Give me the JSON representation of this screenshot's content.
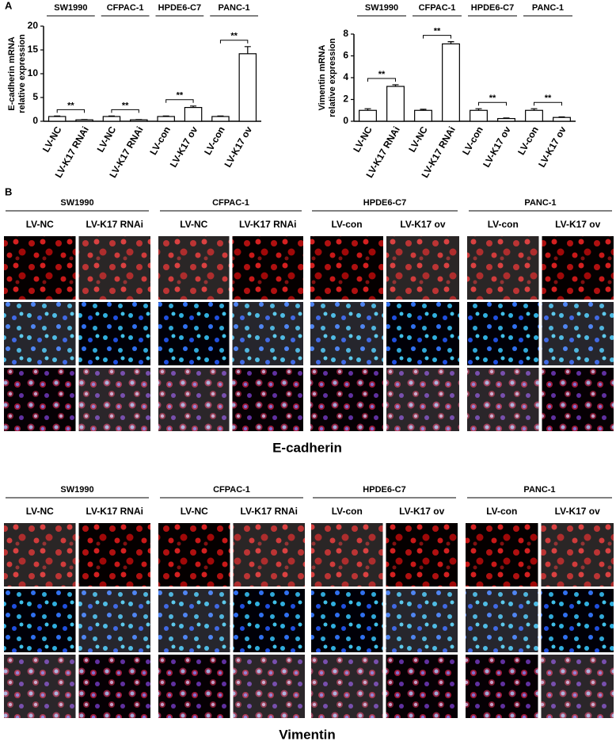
{
  "panel_labels": [
    "A",
    "B"
  ],
  "chart_data": [
    {
      "type": "bar",
      "ylabel": [
        "E-cadherin mRNA",
        "relative expression"
      ],
      "groups": [
        "SW1990",
        "CFPAC-1",
        "HPDE6-C7",
        "PANC-1"
      ],
      "categories": [
        "LV-NC",
        "LV-K17 RNAi",
        "LV-NC",
        "LV-K17 RNAi",
        "LV-con",
        "LV-K17 ov",
        "LV-con",
        "LV-K17 ov"
      ],
      "values": [
        1,
        0.3,
        1,
        0.3,
        1,
        2.9,
        1,
        14.2
      ],
      "errors": [
        0.1,
        0.05,
        0.1,
        0.05,
        0.1,
        0.3,
        0.1,
        1.5
      ],
      "annotations": [
        "**",
        "**",
        "**",
        "**"
      ],
      "color": "#ffffff",
      "ylim": [
        0,
        20
      ],
      "yticks": [
        0,
        5,
        10,
        15,
        20
      ]
    },
    {
      "type": "bar",
      "ylabel": [
        "Vimentin mRNA",
        "relative expression"
      ],
      "groups": [
        "SW1990",
        "CFPAC-1",
        "HPDE6-C7",
        "PANC-1"
      ],
      "categories": [
        "LV-NC",
        "LV-K17 RNAi",
        "LV-NC",
        "LV-K17 RNAi",
        "LV-con",
        "LV-K17 ov",
        "LV-con",
        "LV-K17 ov"
      ],
      "values": [
        1,
        3.2,
        1,
        7.1,
        1,
        0.25,
        1,
        0.35
      ],
      "errors": [
        0.15,
        0.15,
        0.1,
        0.2,
        0.15,
        0.05,
        0.15,
        0.05
      ],
      "annotations": [
        "**",
        "**",
        "**",
        "**"
      ],
      "color": "#ffffff",
      "ylim": [
        0,
        8
      ],
      "yticks": [
        0,
        2,
        4,
        6,
        8
      ]
    }
  ],
  "image_panels": [
    {
      "caption": "E-cadherin",
      "groups": [
        {
          "name": "SW1990",
          "columns": [
            "LV-NC",
            "LV-K17 RNAi"
          ]
        },
        {
          "name": "CFPAC-1",
          "columns": [
            "LV-NC",
            "LV-K17 RNAi"
          ]
        },
        {
          "name": "HPDE6-C7",
          "columns": [
            "LV-con",
            "LV-K17 ov"
          ]
        },
        {
          "name": "PANC-1",
          "columns": [
            "LV-con",
            "LV-K17 ov"
          ]
        }
      ]
    },
    {
      "caption": "Vimentin",
      "groups": [
        {
          "name": "SW1990",
          "columns": [
            "LV-NC",
            "LV-K17 RNAi"
          ]
        },
        {
          "name": "CFPAC-1",
          "columns": [
            "LV-NC",
            "LV-K17 RNAi"
          ]
        },
        {
          "name": "HPDE6-C7",
          "columns": [
            "LV-con",
            "LV-K17 ov"
          ]
        },
        {
          "name": "PANC-1",
          "columns": [
            "LV-con",
            "LV-K17 ov"
          ]
        }
      ]
    }
  ]
}
